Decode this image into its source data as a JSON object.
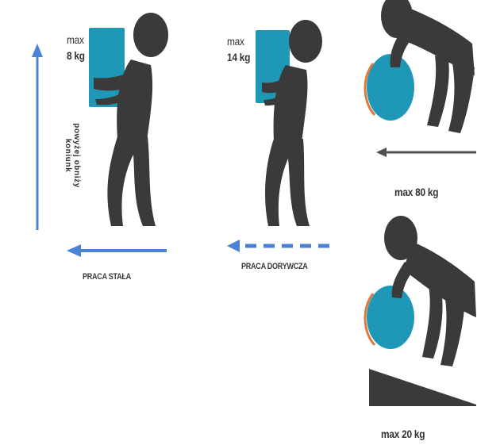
{
  "panels": {
    "constant_work": {
      "limit_prefix": "max",
      "limit_value": "8 kg",
      "caption": "PRACA STAŁA"
    },
    "occasional_work": {
      "limit_prefix": "max",
      "limit_value": "14 kg",
      "caption": "PRACA DORYWCZA"
    },
    "pushing_flat": {
      "limit": "max 80 kg"
    },
    "pushing_slope": {
      "limit": "max 20 kg"
    }
  },
  "axis_label": {
    "line1": "powyżej obniży",
    "line2": "koniunk"
  },
  "colors": {
    "figure": "#3a3a3a",
    "box": "#1f98b8",
    "arrow_blue": "#4b82d6",
    "ball_accent": "#e07a3a",
    "arrow_grey": "#505050"
  }
}
